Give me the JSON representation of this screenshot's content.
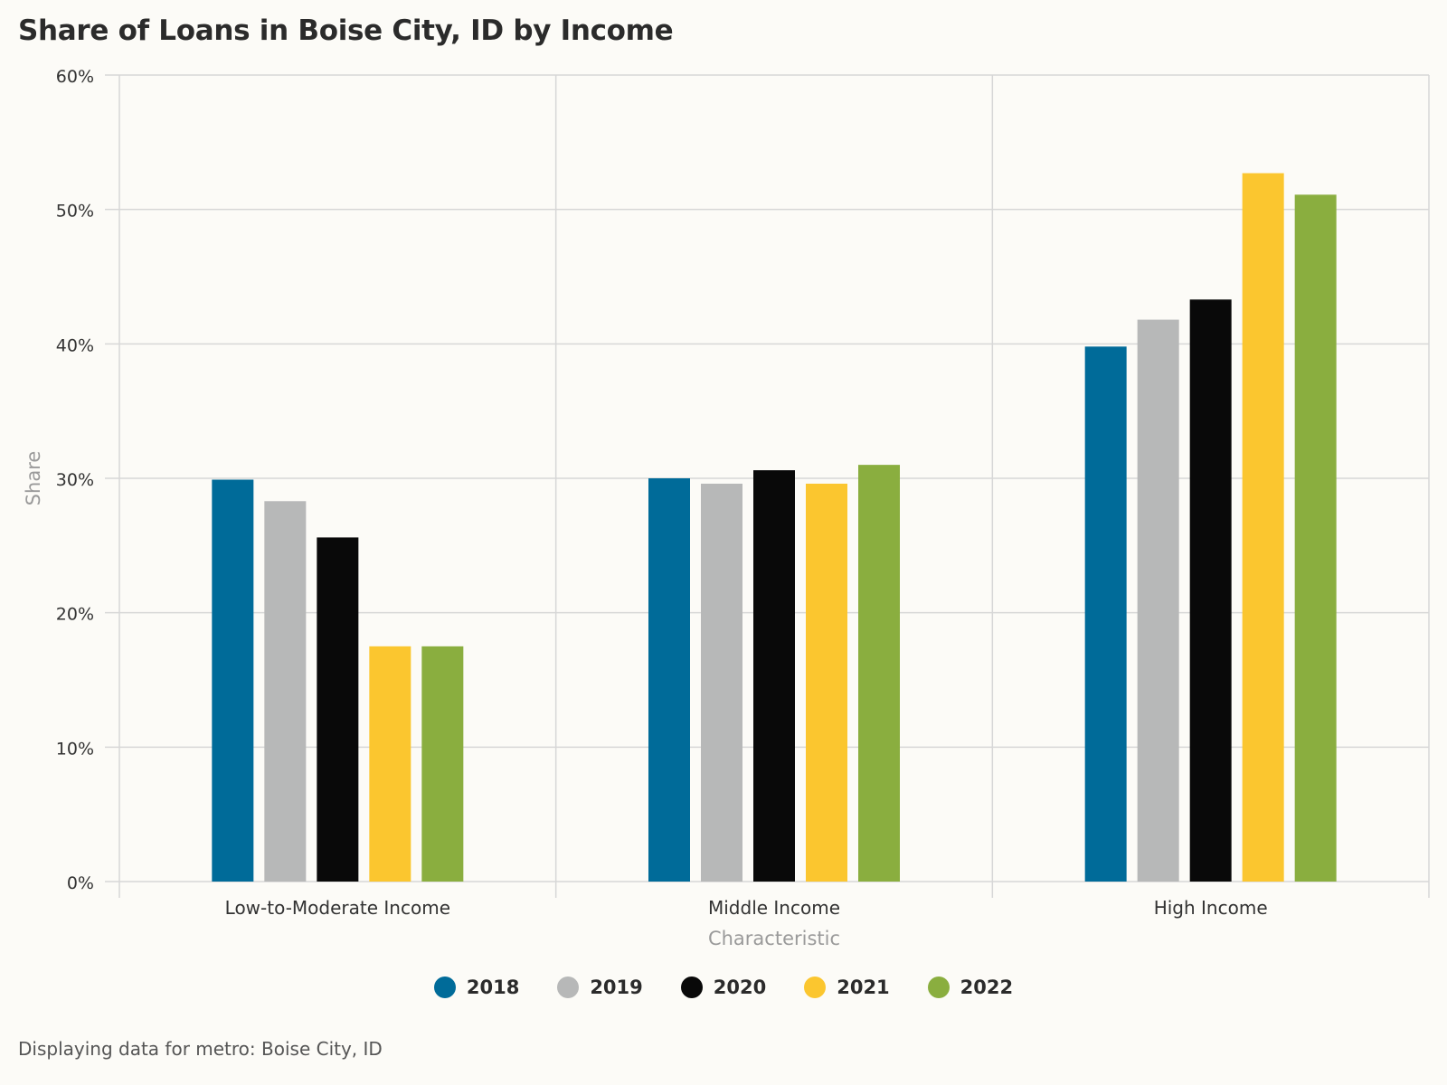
{
  "footer": {
    "note": "Displaying data for metro: Boise City, ID"
  },
  "colors": {
    "background": "#fcfbf7",
    "grid": "#d7d7d7",
    "axis_title": "#9a9a9a",
    "tick_label": "#333333"
  },
  "chart_data": {
    "type": "bar",
    "title": "Share of Loans in Boise City, ID by Income",
    "xlabel": "Characteristic",
    "ylabel": "Share",
    "categories": [
      "Low-to-Moderate Income",
      "Middle Income",
      "High Income"
    ],
    "y_ticks": [
      "0%",
      "10%",
      "20%",
      "30%",
      "40%",
      "50%",
      "60%"
    ],
    "y_tick_values": [
      0,
      10,
      20,
      30,
      40,
      50,
      60
    ],
    "ylim": [
      0,
      60
    ],
    "unit": "%",
    "grid": true,
    "legend_position": "bottom",
    "series": [
      {
        "name": "2018",
        "color": "#006b99",
        "values": [
          29.9,
          30.0,
          39.8
        ]
      },
      {
        "name": "2019",
        "color": "#b7b8b8",
        "values": [
          28.3,
          29.6,
          41.8
        ]
      },
      {
        "name": "2020",
        "color": "#090909",
        "values": [
          25.6,
          30.6,
          43.3
        ]
      },
      {
        "name": "2021",
        "color": "#fbc62f",
        "values": [
          17.5,
          29.6,
          52.7
        ]
      },
      {
        "name": "2022",
        "color": "#8aae3f",
        "values": [
          17.5,
          31.0,
          51.1
        ]
      }
    ]
  }
}
